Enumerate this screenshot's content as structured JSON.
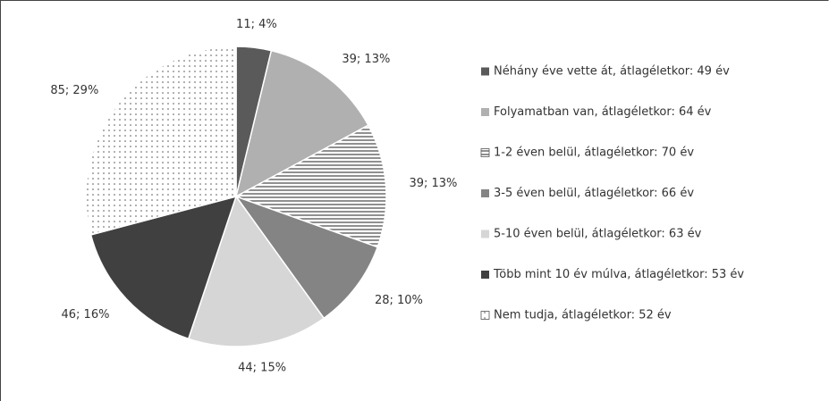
{
  "chart_data": {
    "type": "pie",
    "categories": [
      "Néhány éve vette át, átlagéletkor: 49 év",
      "Folyamatban van, átlagéletkor: 64 év",
      "1-2 éven belül, átlagéletkor: 70 év",
      "3-5 éven belül, átlagéletkor: 66 év",
      "5-10 éven belül, átlagéletkor: 63 év",
      "Több mint 10 év múlva, átlagéletkor: 53 év",
      "Nem tudja, átlagéletkor: 52 év"
    ],
    "values": [
      11,
      39,
      39,
      28,
      44,
      46,
      85
    ],
    "value_labels": [
      "11; 4%",
      "39; 13%",
      "39; 13%",
      "28; 10%",
      "44; 15%",
      "46; 16%",
      "85; 29%"
    ],
    "colors": [
      "#5a5a5a",
      "#b0b0b0",
      "#ffffff",
      "#848484",
      "#d6d6d6",
      "#404040",
      "#ffffff"
    ],
    "patterns": [
      "solid",
      "solid",
      "horizontal-lines",
      "solid",
      "solid",
      "solid",
      "dots"
    ],
    "legend": "right"
  }
}
